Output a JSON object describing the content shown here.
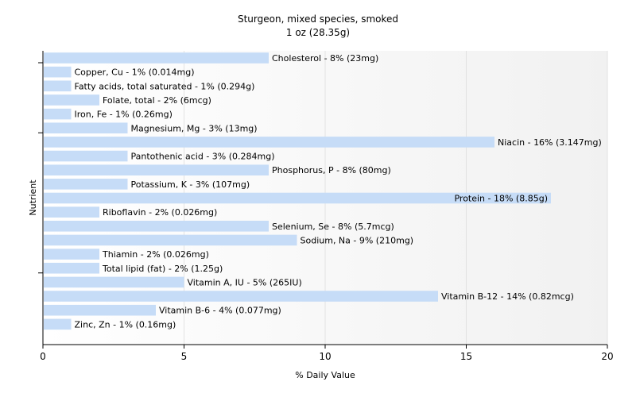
{
  "chart_data": {
    "type": "bar",
    "orientation": "horizontal",
    "title": "Sturgeon, mixed species, smoked",
    "subtitle": "1 oz (28.35g)",
    "xlabel": "% Daily Value",
    "ylabel": "Nutrient",
    "xlim": [
      0,
      20
    ],
    "xticks": [
      0,
      5,
      10,
      15,
      20
    ],
    "grid": true,
    "bar_color": "#c6dcf7",
    "categories": [
      "Cholesterol",
      "Copper, Cu",
      "Fatty acids, total saturated",
      "Folate, total",
      "Iron, Fe",
      "Magnesium, Mg",
      "Niacin",
      "Pantothenic acid",
      "Phosphorus, P",
      "Potassium, K",
      "Protein",
      "Riboflavin",
      "Selenium, Se",
      "Sodium, Na",
      "Thiamin",
      "Total lipid (fat)",
      "Vitamin A, IU",
      "Vitamin B-12",
      "Vitamin B-6",
      "Zinc, Zn"
    ],
    "values": [
      8,
      1,
      1,
      2,
      1,
      3,
      16,
      3,
      8,
      3,
      18,
      2,
      8,
      9,
      2,
      2,
      5,
      14,
      4,
      1
    ],
    "labels": [
      "Cholesterol - 8% (23mg)",
      "Copper, Cu - 1% (0.014mg)",
      "Fatty acids, total saturated - 1% (0.294g)",
      "Folate, total - 2% (6mcg)",
      "Iron, Fe - 1% (0.26mg)",
      "Magnesium, Mg - 3% (13mg)",
      "Niacin - 16% (3.147mg)",
      "Pantothenic acid - 3% (0.284mg)",
      "Phosphorus, P - 8% (80mg)",
      "Potassium, K - 3% (107mg)",
      "Protein - 18% (8.85g)",
      "Riboflavin - 2% (0.026mg)",
      "Selenium, Se - 8% (5.7mcg)",
      "Sodium, Na - 9% (210mg)",
      "Thiamin - 2% (0.026mg)",
      "Total lipid (fat) - 2% (1.25g)",
      "Vitamin A, IU - 5% (265IU)",
      "Vitamin B-12 - 14% (0.82mcg)",
      "Vitamin B-6 - 4% (0.077mg)",
      "Zinc, Zn - 1% (0.16mg)"
    ]
  }
}
